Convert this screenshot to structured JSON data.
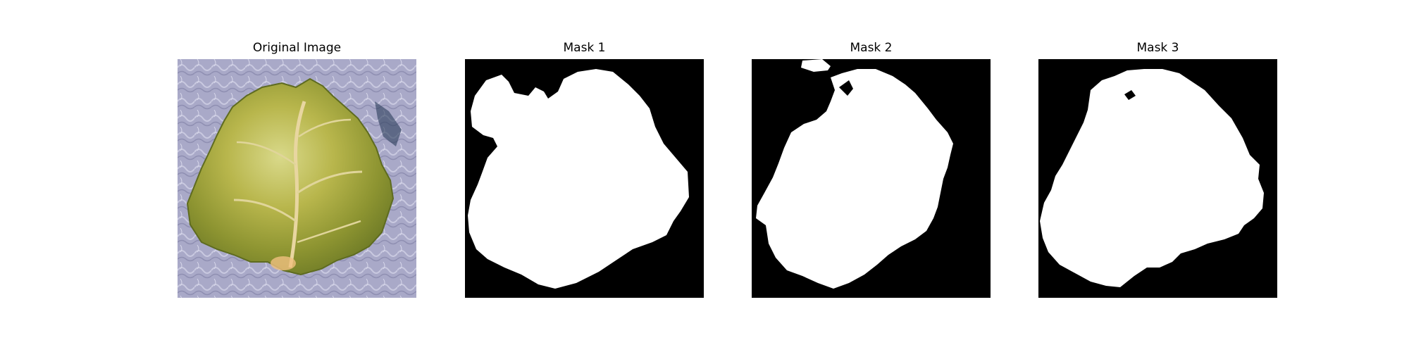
{
  "figure": {
    "panels": [
      {
        "id": "original",
        "title": "Original Image",
        "kind": "photo",
        "subject": "lettuce-leaf",
        "colors": {
          "background": "#a8a8c8",
          "leaf": "#a6ae40"
        }
      },
      {
        "id": "mask1",
        "title": "Mask 1",
        "kind": "binary-mask",
        "colors": {
          "background": "#000000",
          "foreground": "#ffffff"
        }
      },
      {
        "id": "mask2",
        "title": "Mask 2",
        "kind": "binary-mask",
        "colors": {
          "background": "#000000",
          "foreground": "#ffffff"
        }
      },
      {
        "id": "mask3",
        "title": "Mask 3",
        "kind": "binary-mask",
        "colors": {
          "background": "#000000",
          "foreground": "#ffffff"
        }
      }
    ]
  }
}
